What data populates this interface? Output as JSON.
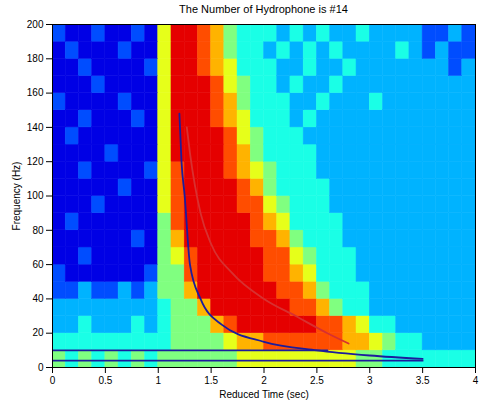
{
  "chart_data": {
    "type": "heatmap",
    "title": "The Number of Hydrophone is #14",
    "x_label": "Reduced Time (sec)",
    "y_label": "Frequency (Hz)",
    "xlim": [
      0,
      4
    ],
    "xticks": [
      0,
      0.5,
      1,
      1.5,
      2,
      2.5,
      3,
      3.5,
      4
    ],
    "ylim": [
      0,
      200
    ],
    "yticks": [
      0,
      20,
      40,
      60,
      80,
      100,
      120,
      140,
      160,
      180,
      200
    ],
    "zlim": [
      0,
      10
    ],
    "x_bins": [
      0,
      0.125,
      0.25,
      0.375,
      0.5,
      0.625,
      0.75,
      0.875,
      1,
      1.125,
      1.25,
      1.375,
      1.5,
      1.625,
      1.75,
      1.875,
      2,
      2.125,
      2.25,
      2.375,
      2.5,
      2.625,
      2.75,
      2.875,
      3,
      3.125,
      3.25,
      3.375,
      3.5,
      3.625,
      3.75,
      3.875,
      4
    ],
    "y_bins": [
      0,
      10,
      20,
      30,
      40,
      50,
      60,
      70,
      80,
      90,
      100,
      110,
      120,
      130,
      140,
      150,
      160,
      170,
      180,
      190,
      200
    ],
    "cells": [
      [
        5,
        4,
        5,
        4,
        5,
        4,
        5,
        4,
        5,
        5,
        5,
        5,
        5,
        5,
        6,
        6,
        6,
        6,
        6,
        6,
        6,
        6,
        6,
        5,
        5,
        4,
        4,
        4,
        4,
        4,
        4,
        4
      ],
      [
        4,
        4,
        4,
        4,
        4,
        4,
        4,
        4,
        4,
        5,
        5,
        5,
        5,
        6,
        7,
        7,
        8,
        8,
        8,
        8,
        8,
        8,
        7,
        7,
        6,
        5,
        4,
        4,
        3,
        3,
        3,
        3
      ],
      [
        3,
        3,
        4,
        3,
        3,
        3,
        4,
        3,
        4,
        5,
        5,
        5,
        7,
        8,
        9,
        9,
        9,
        9,
        9,
        9,
        8,
        8,
        7,
        6,
        4,
        4,
        3,
        3,
        3,
        3,
        3,
        3
      ],
      [
        3,
        3,
        3,
        3,
        3,
        3,
        3,
        3,
        4,
        5,
        5,
        7,
        9,
        9,
        9,
        9,
        9,
        9,
        8,
        8,
        7,
        5,
        4,
        4,
        3,
        3,
        3,
        3,
        3,
        3,
        3,
        3
      ],
      [
        2,
        2,
        3,
        2,
        2,
        3,
        2,
        3,
        5,
        5,
        7,
        9,
        9,
        9,
        9,
        9,
        9,
        8,
        8,
        7,
        5,
        4,
        4,
        4,
        3,
        3,
        3,
        3,
        3,
        3,
        3,
        3
      ],
      [
        2,
        1,
        1,
        1,
        1,
        1,
        1,
        2,
        5,
        5,
        8,
        9,
        9,
        9,
        9,
        9,
        8,
        8,
        7,
        6,
        4,
        4,
        4,
        3,
        3,
        3,
        3,
        3,
        3,
        3,
        3,
        3
      ],
      [
        1,
        1,
        2,
        1,
        1,
        1,
        1,
        1,
        5,
        6,
        8,
        9,
        9,
        9,
        9,
        9,
        8,
        8,
        6,
        5,
        4,
        4,
        4,
        3,
        3,
        3,
        3,
        3,
        3,
        3,
        3,
        3
      ],
      [
        1,
        1,
        1,
        1,
        1,
        1,
        2,
        1,
        5,
        7,
        9,
        9,
        9,
        9,
        9,
        8,
        8,
        7,
        5,
        4,
        4,
        4,
        3,
        3,
        3,
        3,
        3,
        3,
        3,
        3,
        3,
        3
      ],
      [
        1,
        2,
        1,
        1,
        1,
        1,
        1,
        1,
        5,
        8,
        9,
        9,
        9,
        9,
        9,
        8,
        7,
        6,
        4,
        4,
        4,
        4,
        3,
        3,
        3,
        3,
        3,
        3,
        3,
        3,
        3,
        3
      ],
      [
        1,
        1,
        1,
        2,
        1,
        1,
        1,
        1,
        6,
        8,
        9,
        9,
        9,
        9,
        8,
        8,
        6,
        5,
        4,
        4,
        4,
        3,
        3,
        3,
        3,
        3,
        3,
        3,
        3,
        3,
        3,
        3
      ],
      [
        1,
        1,
        1,
        1,
        1,
        2,
        1,
        1,
        6,
        8,
        9,
        9,
        9,
        9,
        8,
        7,
        5,
        4,
        4,
        4,
        4,
        3,
        3,
        3,
        3,
        3,
        3,
        3,
        3,
        3,
        3,
        3
      ],
      [
        1,
        1,
        2,
        1,
        1,
        1,
        1,
        2,
        6,
        8,
        9,
        9,
        9,
        8,
        7,
        6,
        5,
        4,
        4,
        4,
        3,
        3,
        3,
        3,
        3,
        3,
        3,
        3,
        3,
        3,
        3,
        3
      ],
      [
        1,
        1,
        1,
        1,
        2,
        1,
        1,
        1,
        6,
        9,
        9,
        9,
        9,
        8,
        7,
        5,
        4,
        4,
        4,
        4,
        3,
        3,
        3,
        3,
        3,
        3,
        3,
        3,
        3,
        3,
        3,
        3
      ],
      [
        1,
        2,
        1,
        1,
        1,
        1,
        1,
        1,
        6,
        9,
        9,
        9,
        9,
        8,
        6,
        5,
        4,
        4,
        4,
        3,
        3,
        3,
        3,
        3,
        3,
        3,
        3,
        3,
        3,
        3,
        3,
        3
      ],
      [
        1,
        1,
        2,
        1,
        1,
        1,
        2,
        1,
        6,
        9,
        9,
        9,
        8,
        7,
        6,
        4,
        4,
        4,
        3,
        4,
        3,
        3,
        3,
        3,
        3,
        3,
        3,
        3,
        3,
        3,
        3,
        3
      ],
      [
        2,
        1,
        1,
        1,
        1,
        2,
        1,
        1,
        6,
        9,
        9,
        9,
        8,
        7,
        5,
        4,
        4,
        4,
        3,
        3,
        4,
        3,
        3,
        3,
        4,
        3,
        3,
        3,
        3,
        3,
        3,
        3
      ],
      [
        1,
        1,
        1,
        2,
        1,
        1,
        1,
        1,
        6,
        9,
        9,
        9,
        8,
        6,
        5,
        4,
        4,
        3,
        4,
        3,
        3,
        4,
        3,
        3,
        3,
        3,
        3,
        3,
        3,
        3,
        3,
        3
      ],
      [
        1,
        1,
        2,
        1,
        1,
        1,
        1,
        2,
        6,
        9,
        9,
        8,
        7,
        6,
        4,
        4,
        4,
        3,
        3,
        4,
        3,
        3,
        4,
        3,
        3,
        3,
        3,
        3,
        3,
        3,
        2,
        3
      ],
      [
        1,
        2,
        1,
        1,
        1,
        2,
        1,
        1,
        6,
        9,
        9,
        8,
        7,
        5,
        4,
        4,
        3,
        4,
        3,
        4,
        3,
        4,
        3,
        3,
        3,
        3,
        4,
        3,
        2,
        3,
        2,
        2
      ],
      [
        2,
        1,
        1,
        2,
        1,
        1,
        2,
        1,
        6,
        9,
        9,
        8,
        7,
        5,
        4,
        4,
        4,
        3,
        4,
        3,
        4,
        3,
        3,
        4,
        3,
        3,
        3,
        3,
        2,
        2,
        3,
        2
      ]
    ],
    "series": [
      {
        "type": "line",
        "color": "#d83030",
        "x": [
          1.27,
          1.3,
          1.4,
          1.5,
          1.7,
          2.0,
          2.3,
          2.6,
          2.8
        ],
        "values": [
          140,
          125,
          90,
          72,
          55,
          40,
          30,
          20,
          14
        ]
      },
      {
        "type": "line",
        "color": "#1c1c9c",
        "x": [
          1.2,
          1.22,
          1.25,
          1.3,
          1.4,
          1.6,
          2.0,
          2.5,
          3.0,
          3.5
        ],
        "values": [
          148,
          120,
          100,
          60,
          40,
          25,
          15,
          10,
          7,
          5
        ]
      },
      {
        "type": "line",
        "color": "#1c1c9c",
        "x": [
          0,
          2.6
        ],
        "values": [
          10,
          10
        ]
      },
      {
        "type": "line",
        "color": "#1c1c9c",
        "x": [
          0,
          3.5
        ],
        "values": [
          4,
          4
        ]
      }
    ],
    "grid": false,
    "legend": false
  }
}
